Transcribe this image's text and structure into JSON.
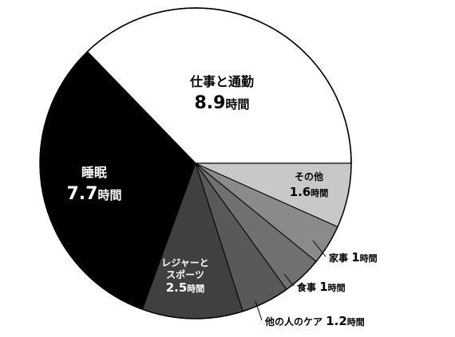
{
  "chart_data": {
    "type": "pie",
    "title": "",
    "unit": "時間",
    "start": "3 o'clock, counterclockwise",
    "slices": [
      {
        "name": "仕事と通勤",
        "value": 8.9,
        "color": "#ffffff",
        "label_color": "#000000"
      },
      {
        "name": "睡眠",
        "value": 7.7,
        "color": "#000000",
        "label_color": "#ffffff"
      },
      {
        "name": "レジャーと\nスポーツ",
        "value": 2.5,
        "color": "#404040",
        "label_color": "#ffffff"
      },
      {
        "name": "他の人のケア",
        "value": 1.2,
        "color": "#595959",
        "label_color": "#000000"
      },
      {
        "name": "食事",
        "value": 1,
        "color": "#707070",
        "label_color": "#000000"
      },
      {
        "name": "家事",
        "value": 1,
        "color": "#8a8a8a",
        "label_color": "#000000"
      },
      {
        "name": "その他",
        "value": 1.6,
        "color": "#c8c8c8",
        "label_color": "#000000"
      }
    ]
  }
}
